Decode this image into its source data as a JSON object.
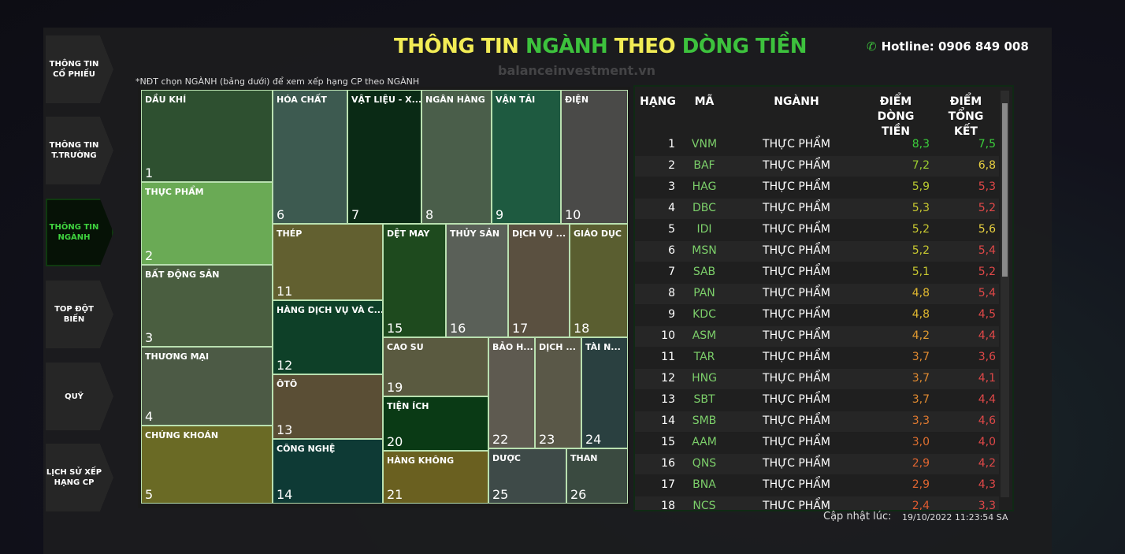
{
  "nav": {
    "items": [
      "THÔNG TIN CỔ PHIẾU",
      "THÔNG TIN T.TRƯỜNG",
      "THÔNG TIN NGÀNH",
      "TOP ĐỘT BIẾN",
      "QUỸ",
      "LỊCH SỬ XẾP HẠNG CP"
    ]
  },
  "header": {
    "title": [
      "THÔNG TIN",
      "NGÀNH",
      "THEO",
      "DÒNG TIỀN"
    ],
    "hotline": "Hotline: 0906 849 008",
    "watermark": "balanceinvestment.vn"
  },
  "note": "*NĐT chọn NGÀNH (bảng dưới) để xem xếp hạng CP theo NGÀNH",
  "treemap": {
    "tiles": [
      {
        "label": "DẦU KHÍ",
        "rank": 1
      },
      {
        "label": "THỰC PHẨM",
        "rank": 2
      },
      {
        "label": "BẤT ĐỘNG SẢN",
        "rank": 3
      },
      {
        "label": "THƯƠNG MẠI",
        "rank": 4
      },
      {
        "label": "CHỨNG KHOÁN",
        "rank": 5
      },
      {
        "label": "HÓA CHẤT",
        "rank": 6
      },
      {
        "label": "VẬT LIỆU - X...",
        "rank": 7
      },
      {
        "label": "NGÂN HÀNG",
        "rank": 8
      },
      {
        "label": "VẬN TẢI",
        "rank": 9
      },
      {
        "label": "ĐIỆN",
        "rank": 10
      },
      {
        "label": "THÉP",
        "rank": 11
      },
      {
        "label": "HÀNG DỊCH VỤ VÀ C...",
        "rank": 12
      },
      {
        "label": "ÔTÔ",
        "rank": 13
      },
      {
        "label": "CÔNG NGHỆ",
        "rank": 14
      },
      {
        "label": "DỆT MAY",
        "rank": 15
      },
      {
        "label": "THỦY SẢN",
        "rank": 16
      },
      {
        "label": "DỊCH VỤ ...",
        "rank": 17
      },
      {
        "label": "GIÁO DỤC",
        "rank": 18
      },
      {
        "label": "CAO SU",
        "rank": 19
      },
      {
        "label": "TIỆN ÍCH",
        "rank": 20
      },
      {
        "label": "HÀNG KHÔNG",
        "rank": 21
      },
      {
        "label": "BẢO H...",
        "rank": 22
      },
      {
        "label": "DỊCH ...",
        "rank": 23
      },
      {
        "label": "TÀI N...",
        "rank": 24
      },
      {
        "label": "DƯỢC",
        "rank": 25
      },
      {
        "label": "THAN",
        "rank": 26
      }
    ]
  },
  "table": {
    "headers": [
      "HẠNG",
      "MÃ",
      "NGÀNH",
      "ĐIỂM DÒNG TIỀN",
      "ĐIỂM TỔNG KẾT"
    ],
    "rows": [
      [
        1,
        "VNM",
        "THỰC PHẨM",
        "8,3",
        "7,5"
      ],
      [
        2,
        "BAF",
        "THỰC PHẨM",
        "7,2",
        "6,8"
      ],
      [
        3,
        "HAG",
        "THỰC PHẨM",
        "5,9",
        "5,3"
      ],
      [
        4,
        "DBC",
        "THỰC PHẨM",
        "5,3",
        "5,2"
      ],
      [
        5,
        "IDI",
        "THỰC PHẨM",
        "5,2",
        "5,6"
      ],
      [
        6,
        "MSN",
        "THỰC PHẨM",
        "5,2",
        "5,4"
      ],
      [
        7,
        "SAB",
        "THỰC PHẨM",
        "5,1",
        "5,2"
      ],
      [
        8,
        "PAN",
        "THỰC PHẨM",
        "4,8",
        "5,4"
      ],
      [
        9,
        "KDC",
        "THỰC PHẨM",
        "4,8",
        "4,5"
      ],
      [
        10,
        "ASM",
        "THỰC PHẨM",
        "4,2",
        "4,4"
      ],
      [
        11,
        "TAR",
        "THỰC PHẨM",
        "3,7",
        "3,6"
      ],
      [
        12,
        "HNG",
        "THỰC PHẨM",
        "3,7",
        "4,1"
      ],
      [
        13,
        "SBT",
        "THỰC PHẨM",
        "3,7",
        "4,4"
      ],
      [
        14,
        "SMB",
        "THỰC PHẨM",
        "3,3",
        "4,6"
      ],
      [
        15,
        "AAM",
        "THỰC PHẨM",
        "3,0",
        "4,0"
      ],
      [
        16,
        "QNS",
        "THỰC PHẨM",
        "2,9",
        "4,2"
      ],
      [
        17,
        "BNA",
        "THỰC PHẨM",
        "2,9",
        "4,3"
      ],
      [
        18,
        "NCS",
        "THỰC PHẨM",
        "2,4",
        "3,3"
      ]
    ]
  },
  "footer": {
    "label": "Cập nhật lúc:",
    "timestamp": "19/10/2022 11:23:54 SA"
  }
}
